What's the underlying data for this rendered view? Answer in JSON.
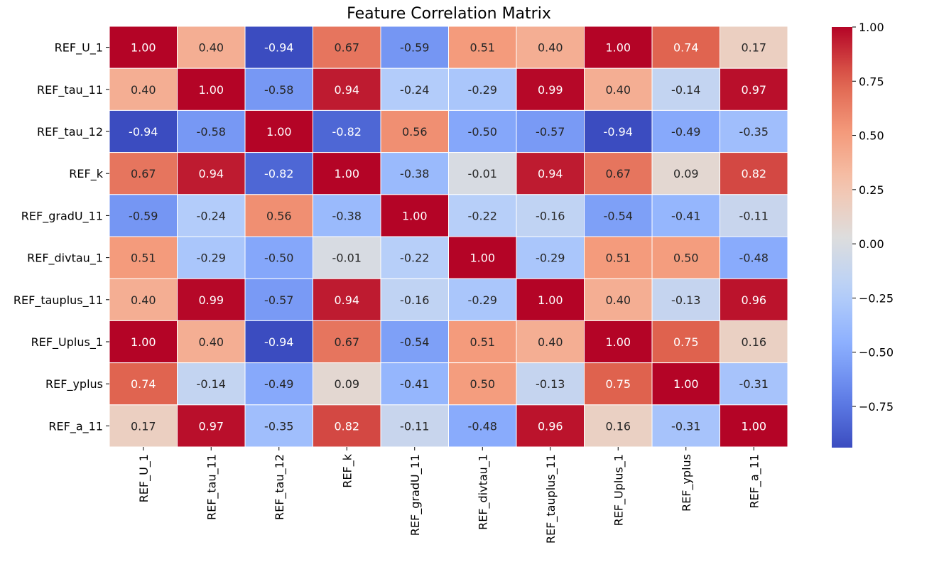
{
  "chart_data": {
    "type": "heatmap",
    "title": "Feature Correlation Matrix",
    "xlabel": "",
    "ylabel": "",
    "labels": [
      "REF_U_1",
      "REF_tau_11",
      "REF_tau_12",
      "REF_k",
      "REF_gradU_11",
      "REF_divtau_1",
      "REF_tauplus_11",
      "REF_Uplus_1",
      "REF_yplus",
      "REF_a_11"
    ],
    "matrix": [
      [
        1.0,
        0.4,
        -0.94,
        0.67,
        -0.59,
        0.51,
        0.4,
        1.0,
        0.74,
        0.17
      ],
      [
        0.4,
        1.0,
        -0.58,
        0.94,
        -0.24,
        -0.29,
        0.99,
        0.4,
        -0.14,
        0.97
      ],
      [
        -0.94,
        -0.58,
        1.0,
        -0.82,
        0.56,
        -0.5,
        -0.57,
        -0.94,
        -0.49,
        -0.35
      ],
      [
        0.67,
        0.94,
        -0.82,
        1.0,
        -0.38,
        -0.01,
        0.94,
        0.67,
        0.09,
        0.82
      ],
      [
        -0.59,
        -0.24,
        0.56,
        -0.38,
        1.0,
        -0.22,
        -0.16,
        -0.54,
        -0.41,
        -0.11
      ],
      [
        0.51,
        -0.29,
        -0.5,
        -0.01,
        -0.22,
        1.0,
        -0.29,
        0.51,
        0.5,
        -0.48
      ],
      [
        0.4,
        0.99,
        -0.57,
        0.94,
        -0.16,
        -0.29,
        1.0,
        0.4,
        -0.13,
        0.96
      ],
      [
        1.0,
        0.4,
        -0.94,
        0.67,
        -0.54,
        0.51,
        0.4,
        1.0,
        0.75,
        0.16
      ],
      [
        0.74,
        -0.14,
        -0.49,
        0.09,
        -0.41,
        0.5,
        -0.13,
        0.75,
        1.0,
        -0.31
      ],
      [
        0.17,
        0.97,
        -0.35,
        0.82,
        -0.11,
        -0.48,
        0.96,
        0.16,
        -0.31,
        1.0
      ]
    ],
    "colormap": "coolwarm",
    "colorbar": {
      "range": [
        -0.94,
        1.0
      ],
      "ticks": [
        1.0,
        0.75,
        0.5,
        0.25,
        0.0,
        -0.25,
        -0.5,
        -0.75
      ],
      "tick_labels": [
        "1.00",
        "0.75",
        "0.50",
        "0.25",
        "0.00",
        "−0.25",
        "−0.50",
        "−0.75"
      ]
    },
    "annotated": true,
    "number_format": "0.00",
    "grid": false,
    "legend": "colorbar-right"
  }
}
